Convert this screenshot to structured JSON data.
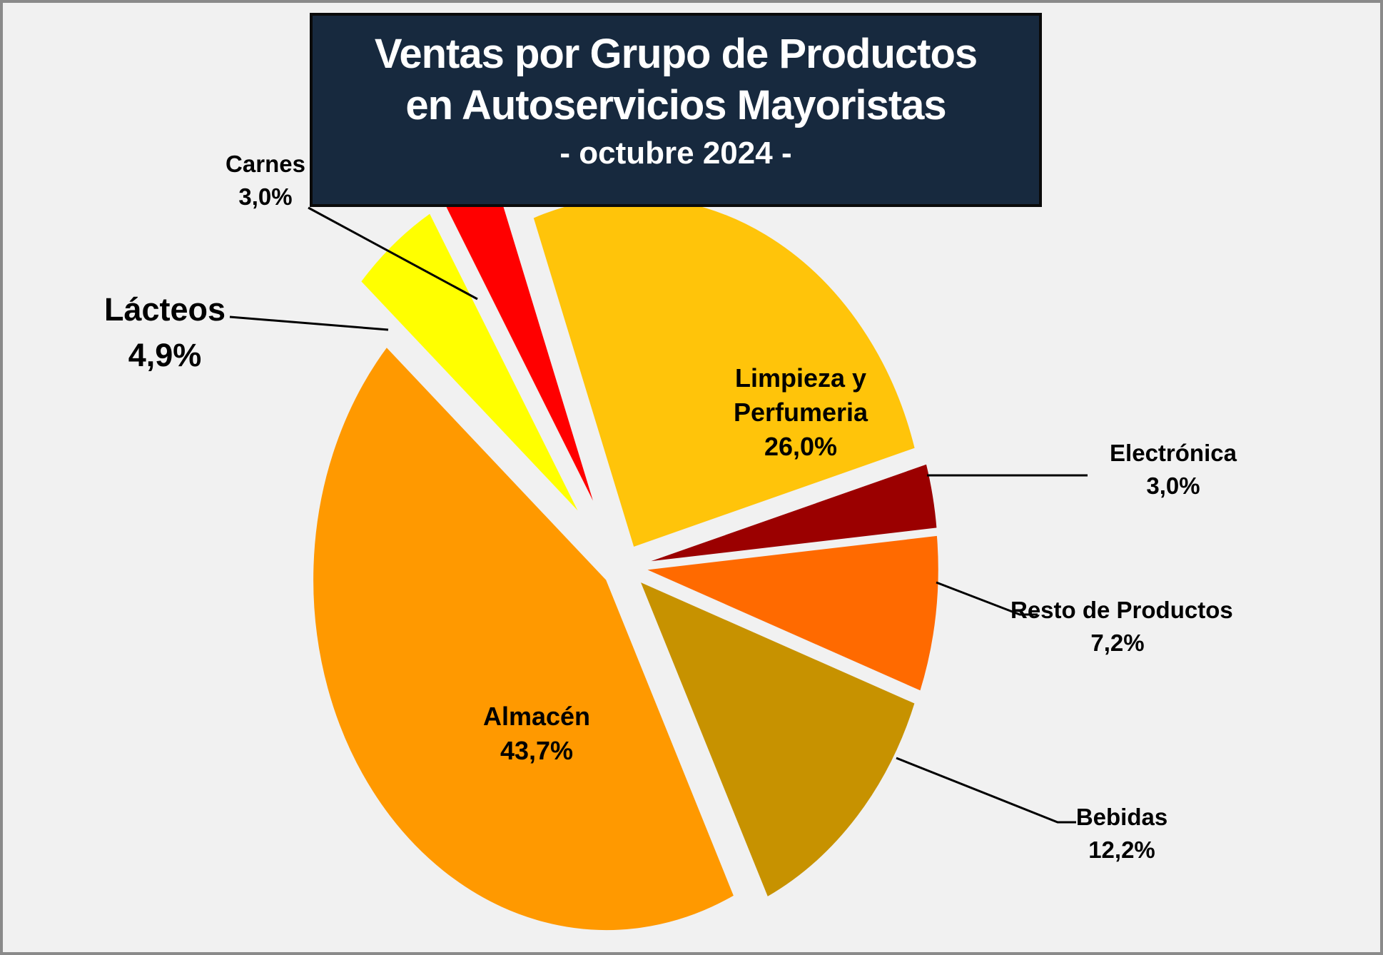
{
  "page": {
    "background_color": "#F1F1F1",
    "border_color": "#8A8A8A"
  },
  "title": {
    "line1": "Ventas por Grupo de Productos",
    "line2": "en Autoservicios Mayoristas",
    "subtitle": "- octubre 2024 -",
    "box_color": "#17293E",
    "text_color": "#FFFFFF"
  },
  "chart_data": {
    "type": "pie",
    "title": "Ventas por Grupo de Productos en Autoservicios Mayoristas - octubre 2024 -",
    "unit": "%",
    "direction": "clockwise",
    "start_angle_deg": -20,
    "exploded": true,
    "legend": "none",
    "slices": [
      {
        "name": "Limpieza y Perfumeria",
        "label_line1": "Limpieza y",
        "label_line2": "Perfumeria",
        "value": 26.0,
        "pct_label": "26,0%",
        "color": "#FFC40A",
        "label_position": "inside"
      },
      {
        "name": "Electrónica",
        "value": 3.0,
        "pct_label": "3,0%",
        "color": "#9B0000",
        "label_position": "outside-right"
      },
      {
        "name": "Resto de Productos",
        "value": 7.2,
        "pct_label": "7,2%",
        "color": "#FF6A00",
        "label_position": "outside-right"
      },
      {
        "name": "Bebidas",
        "value": 12.2,
        "pct_label": "12,2%",
        "color": "#C79200",
        "label_position": "outside-right"
      },
      {
        "name": "Almacén",
        "value": 43.7,
        "pct_label": "43,7%",
        "color": "#FF9900",
        "label_position": "inside"
      },
      {
        "name": "Lácteos",
        "value": 4.9,
        "pct_label": "4,9%",
        "color": "#FFFF00",
        "label_position": "outside-left"
      },
      {
        "name": "Carnes",
        "value": 3.0,
        "pct_label": "3,0%",
        "color": "#FF0000",
        "label_position": "outside-left"
      }
    ]
  }
}
